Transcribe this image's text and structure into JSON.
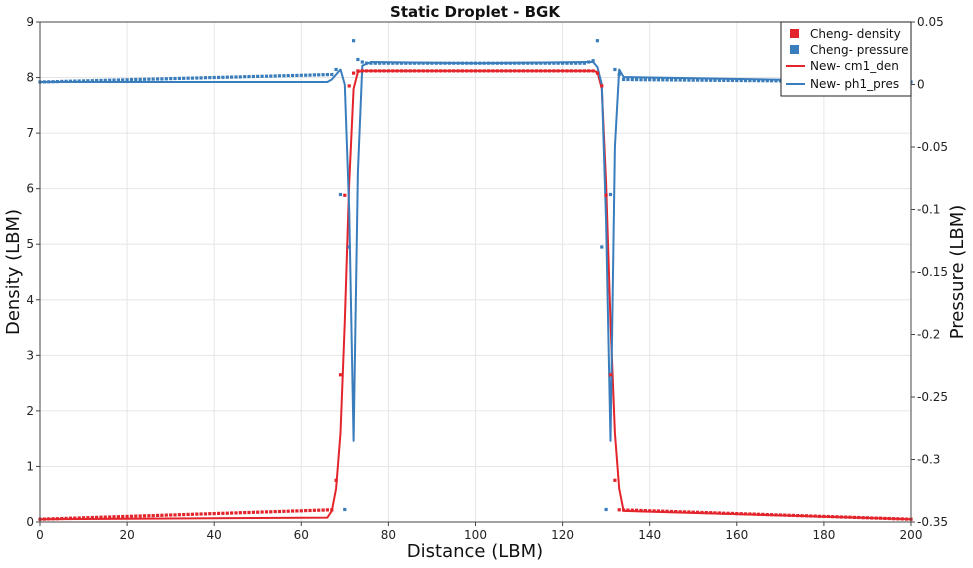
{
  "chart_data": {
    "type": "line",
    "title": "Static Droplet - BGK",
    "xlabel": "Distance (LBM)",
    "ylabel": "Density (LBM)",
    "y2label": "Pressure (LBM)",
    "xlim": [
      0,
      200
    ],
    "ylim": [
      0,
      9
    ],
    "y2lim": [
      -0.35,
      0.05
    ],
    "x_ticks": [
      "0",
      "20",
      "40",
      "60",
      "80",
      "100",
      "120",
      "140",
      "160",
      "180",
      "200"
    ],
    "y_ticks": [
      "0",
      "1",
      "2",
      "3",
      "4",
      "5",
      "6",
      "7",
      "8",
      "9"
    ],
    "y2_ticks": [
      "-0.35",
      "-0.3",
      "-0.25",
      "-0.2",
      "-0.15",
      "-0.1",
      "-0.05",
      "0",
      "0.05"
    ],
    "grid": true,
    "legend_position": "top-right",
    "colors": {
      "density": "#e3242b",
      "pressure": "#3a7dbd"
    },
    "legend": [
      {
        "label": "Cheng- density",
        "kind": "marker",
        "color": "#e3242b"
      },
      {
        "label": "Cheng- pressure",
        "kind": "marker",
        "color": "#3a7dbd"
      },
      {
        "label": "New- cm1_den",
        "kind": "line",
        "color": "#e3242b"
      },
      {
        "label": "New- ph1_pres",
        "kind": "line",
        "color": "#3a7dbd"
      }
    ],
    "series": [
      {
        "name": "New- cm1_den",
        "axis": "left",
        "style": "line",
        "x": [
          0,
          66,
          67,
          68,
          69,
          70,
          71,
          72,
          73,
          74,
          127,
          128,
          129,
          130,
          131,
          132,
          133,
          134,
          200
        ],
        "y": [
          0.05,
          0.08,
          0.2,
          0.6,
          1.6,
          3.6,
          6.1,
          7.8,
          8.1,
          8.12,
          8.12,
          8.1,
          7.8,
          6.1,
          3.6,
          1.6,
          0.6,
          0.2,
          0.05
        ]
      },
      {
        "name": "New- ph1_pres",
        "axis": "right",
        "style": "line",
        "x": [
          0,
          66,
          67,
          68,
          69,
          70,
          71,
          72,
          73,
          74,
          76,
          100,
          126,
          127,
          128,
          129,
          130,
          131,
          132,
          133,
          134,
          200
        ],
        "y": [
          0.002,
          0.002,
          0.004,
          0.008,
          0.012,
          0.0,
          -0.1,
          -0.285,
          -0.07,
          0.015,
          0.018,
          0.017,
          0.018,
          0.018,
          0.014,
          0.0,
          -0.11,
          -0.285,
          -0.05,
          0.012,
          0.006,
          0.002
        ]
      },
      {
        "name": "Cheng- density",
        "axis": "left",
        "style": "marker",
        "x": [
          0,
          67,
          68,
          69,
          70,
          71,
          72,
          73,
          127,
          128,
          129,
          130,
          131,
          132,
          133,
          200
        ],
        "y": [
          0.05,
          0.22,
          0.75,
          2.65,
          5.88,
          7.85,
          8.08,
          8.12,
          8.12,
          8.08,
          7.85,
          5.88,
          2.65,
          0.75,
          0.22,
          0.05
        ]
      },
      {
        "name": "Cheng- pressure",
        "axis": "right",
        "style": "marker",
        "x": [
          0,
          67,
          68,
          69,
          70,
          71,
          72,
          73,
          74,
          75,
          125,
          126,
          127,
          128,
          129,
          130,
          131,
          132,
          133,
          134,
          200
        ],
        "y": [
          0.002,
          0.008,
          0.012,
          -0.088,
          -0.34,
          -0.13,
          0.035,
          0.02,
          0.018,
          0.017,
          0.017,
          0.018,
          0.019,
          0.035,
          -0.13,
          -0.34,
          -0.088,
          0.012,
          0.008,
          0.004,
          0.002
        ]
      }
    ]
  }
}
